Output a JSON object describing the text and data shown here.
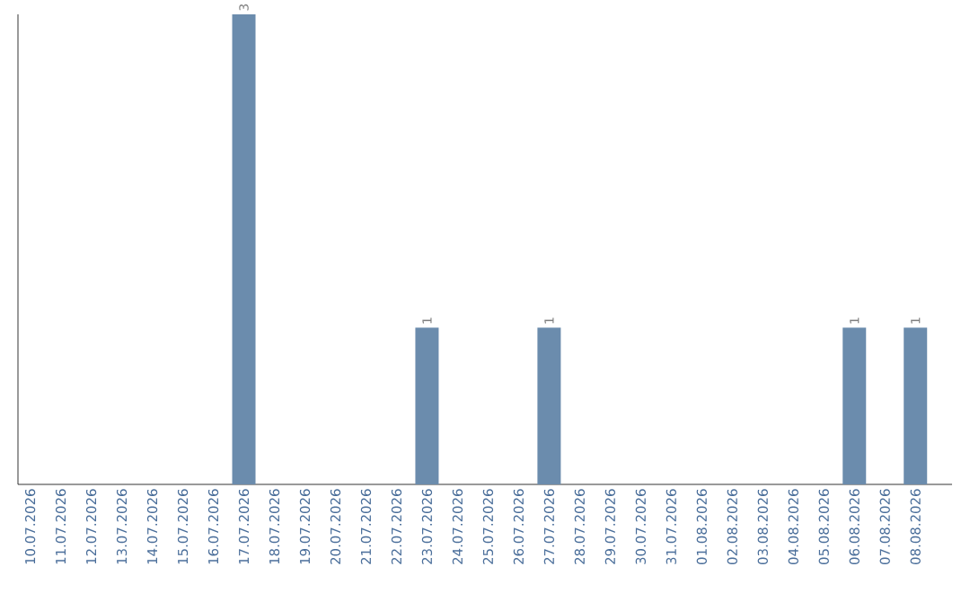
{
  "chart_data": {
    "type": "bar",
    "categories": [
      "10.07.2026",
      "11.07.2026",
      "12.07.2026",
      "13.07.2026",
      "14.07.2026",
      "15.07.2026",
      "16.07.2026",
      "17.07.2026",
      "18.07.2026",
      "19.07.2026",
      "20.07.2026",
      "21.07.2026",
      "22.07.2026",
      "23.07.2026",
      "24.07.2026",
      "25.07.2026",
      "26.07.2026",
      "27.07.2026",
      "28.07.2026",
      "29.07.2026",
      "30.07.2026",
      "31.07.2026",
      "01.08.2026",
      "02.08.2026",
      "03.08.2026",
      "04.08.2026",
      "05.08.2026",
      "06.08.2026",
      "07.08.2026",
      "08.08.2026"
    ],
    "values": [
      0,
      0,
      0,
      0,
      0,
      0,
      0,
      3,
      0,
      0,
      0,
      0,
      0,
      1,
      0,
      0,
      0,
      1,
      0,
      0,
      0,
      0,
      0,
      0,
      0,
      0,
      0,
      1,
      0,
      1
    ],
    "value_labels": [
      null,
      null,
      null,
      null,
      null,
      null,
      null,
      "3",
      null,
      null,
      null,
      null,
      null,
      "1",
      null,
      null,
      null,
      "1",
      null,
      null,
      null,
      null,
      null,
      null,
      null,
      null,
      null,
      "1",
      null,
      "1"
    ],
    "color": "#6b8cad"
  }
}
